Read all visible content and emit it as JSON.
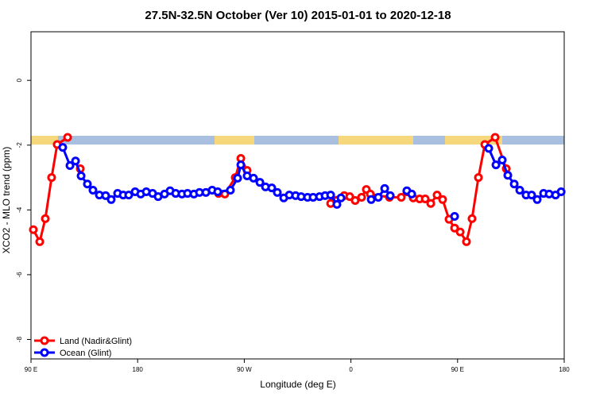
{
  "chart_data": {
    "type": "line",
    "title": "27.5N-32.5N October (Ver 10)   2015-01-01 to 2020-12-18",
    "x_label": "Longitude (deg E)",
    "y_label": "XCO2 - MLO trend (ppm)",
    "xlim": [
      90,
      540
    ],
    "xticks": [
      {
        "value": 90,
        "label": "90 E"
      },
      {
        "value": 180,
        "label": "180"
      },
      {
        "value": 270,
        "label": "90 W"
      },
      {
        "value": 360,
        "label": "0"
      },
      {
        "value": 450,
        "label": "90 E"
      },
      {
        "value": 540,
        "label": "180"
      }
    ],
    "ylim": [
      -8.6,
      1.5
    ],
    "yticks": [
      0,
      -2,
      -4,
      -6,
      -8
    ],
    "legend": "bottomleft",
    "series": [
      {
        "name": "Land (Nadir&Glint)",
        "color": "#ff0000",
        "x": [
          92.0,
          97.4,
          102.1,
          107.4,
          112.1,
          120.9,
          null,
          131.6,
          null,
          248.3,
          253.6,
          262.4,
          267.1,
          272.4,
          null,
          342.9,
          348.2,
          354.3,
          359.0,
          363.6,
          369.0,
          373.0,
          376.4,
          392.5,
          402.5,
          407.2,
          412.6,
          418.0,
          422.7,
          427.4,
          432.7,
          437.4,
          442.8,
          447.5,
          452.2,
          457.5,
          462.2,
          467.6,
          473.0,
          481.7,
          491.1
        ],
        "values": [
          -4.61,
          -4.98,
          -4.27,
          -3.0,
          -1.98,
          -1.76,
          null,
          -2.73,
          null,
          -3.49,
          -3.51,
          -3.0,
          -2.41,
          -2.78,
          null,
          -3.8,
          -3.7,
          -3.56,
          -3.59,
          -3.71,
          -3.61,
          -3.37,
          -3.51,
          -3.61,
          -3.61,
          -3.44,
          -3.63,
          -3.66,
          -3.66,
          -3.8,
          -3.54,
          -3.68,
          -4.29,
          -4.56,
          -4.68,
          -4.98,
          -4.27,
          -3.0,
          -1.98,
          -1.76,
          -2.73
        ]
      },
      {
        "name": "Ocean (Glint)",
        "color": "#0000ff",
        "x": [
          116.8,
          122.9,
          127.6,
          132.3,
          137.6,
          142.3,
          147.7,
          153.0,
          157.7,
          163.1,
          167.8,
          172.5,
          177.9,
          182.6,
          187.3,
          192.6,
          197.3,
          202.7,
          207.4,
          212.1,
          217.4,
          222.1,
          227.5,
          232.2,
          237.6,
          242.9,
          247.6,
          258.3,
          264.4,
          267.1,
          272.4,
          277.8,
          283.2,
          287.9,
          293.2,
          297.9,
          303.3,
          308.0,
          313.3,
          318.0,
          323.4,
          328.1,
          333.5,
          338.2,
          342.9,
          348.2,
          351.6,
          null,
          377.1,
          383.1,
          388.5,
          393.2,
          null,
          407.2,
          411.3,
          null,
          447.5,
          null,
          476.3,
          482.4,
          487.7,
          492.4,
          497.8,
          502.5,
          507.8,
          512.5,
          517.2,
          522.6,
          527.3,
          532.7,
          537.4
        ],
        "values": [
          -2.07,
          -2.63,
          -2.49,
          -2.95,
          -3.2,
          -3.39,
          -3.54,
          -3.56,
          -3.68,
          -3.49,
          -3.54,
          -3.54,
          -3.44,
          -3.51,
          -3.44,
          -3.49,
          -3.59,
          -3.51,
          -3.41,
          -3.49,
          -3.51,
          -3.49,
          -3.51,
          -3.46,
          -3.46,
          -3.39,
          -3.44,
          -3.39,
          -3.02,
          -2.61,
          -2.95,
          -3.02,
          -3.15,
          -3.29,
          -3.32,
          -3.46,
          -3.63,
          -3.54,
          -3.56,
          -3.59,
          -3.61,
          -3.61,
          -3.59,
          -3.56,
          -3.54,
          -3.83,
          -3.63,
          null,
          -3.68,
          -3.61,
          -3.34,
          -3.56,
          null,
          -3.41,
          -3.51,
          null,
          -4.2,
          null,
          -2.1,
          -2.61,
          -2.46,
          -2.93,
          -3.2,
          -3.39,
          -3.54,
          -3.54,
          -3.68,
          -3.49,
          -3.51,
          -3.54,
          -3.44
        ]
      }
    ]
  }
}
